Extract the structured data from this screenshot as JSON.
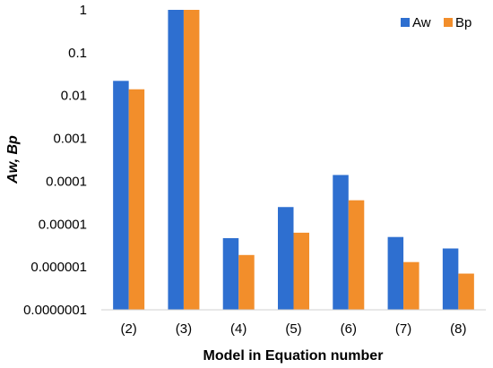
{
  "chart_data": {
    "type": "bar",
    "scale": "log",
    "categories": [
      "(2)",
      "(3)",
      "(4)",
      "(5)",
      "(6)",
      "(7)",
      "(8)"
    ],
    "series": [
      {
        "name": "Aw",
        "color": "#2E6FD0",
        "values": [
          0.022,
          1,
          4.7e-06,
          2.5e-05,
          0.00014,
          5e-06,
          2.7e-06
        ]
      },
      {
        "name": "Bp",
        "color": "#F28E2B",
        "values": [
          0.014,
          1,
          1.9e-06,
          6.3e-06,
          3.6e-05,
          1.3e-06,
          7e-07
        ]
      }
    ],
    "ylim": [
      1e-07,
      1
    ],
    "y_ticks": [
      {
        "value": 1,
        "label": "1"
      },
      {
        "value": 0.1,
        "label": "0.1"
      },
      {
        "value": 0.01,
        "label": "0.01"
      },
      {
        "value": 0.001,
        "label": "0.001"
      },
      {
        "value": 0.0001,
        "label": "0.0001"
      },
      {
        "value": 1e-05,
        "label": "0.00001"
      },
      {
        "value": 1e-06,
        "label": "0.000001"
      },
      {
        "value": 1e-07,
        "label": "0.0000001"
      }
    ],
    "xlabel": "Model in Equation number",
    "ylabel": "Aw, Bp",
    "legend_position": "top-right",
    "grid": false
  }
}
